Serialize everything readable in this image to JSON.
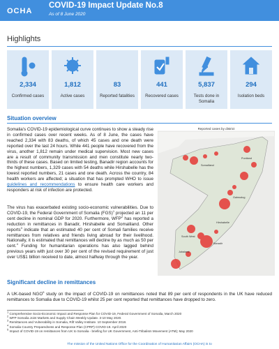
{
  "header": {
    "org": "OCHA",
    "title": "COVID-19 Impact Update No.8",
    "date": "As of 8 June 2020"
  },
  "highlights": {
    "title": "Highlights",
    "items": [
      {
        "value": "2,334",
        "label": "Confirmed cases"
      },
      {
        "value": "1,812",
        "label": "Active cases"
      },
      {
        "value": "83",
        "label": "Reported fatalities"
      },
      {
        "value": "441",
        "label": "Recovered cases"
      },
      {
        "value": "5,837",
        "label": "Tests done in Somalia"
      },
      {
        "value": "294",
        "label": "Isolation beds"
      }
    ]
  },
  "situation_overview": {
    "heading": "Situation overview",
    "paragraphs": [
      [
        "Somalia's COVID-19 epidemiological curve continues to show a steady rise in confirmed cases over recent weeks. As of 8 June, the cases have reached 2,334 with 83 deaths, of which 45 cases and one death were reported over the last 24 hours. While 441 people have recovered from the virus, another 1,812 remain under medical supervision. Most new cases are a result of community transmission and men constitute nearly two-thirds of these cases. Based on limited testing, Banadir region accounts for the highest numbers, 1,329 cases with 54 deaths while Hirshabelle has the lowest reported numbers, 21 cases and one death. Across the country, 84 health workers are affected; a situation that has prompted WHO to issue ",
        {
          "link": "guidelines and recommendations"
        },
        " to ensure health care workers and responders at risk of infection are protected."
      ],
      [
        "The virus has exacerbated existing socio-economic vulnerabilities. Due to COVID-19, the Federal Government of Somalia (FGS)",
        {
          "sup": "1"
        },
        " projected an 11 per cent decline in nominal GDP for 2020. Furthermore, WFP",
        {
          "sup": "2"
        },
        " has reported a reduction in remittances in Banadir, Hirshabelle and Somaliland. Other reports",
        {
          "sup": "3"
        },
        " indicate that an estimated 40 per cent of Somali families receive remittances from relatives and friends living abroad for their livelihood. Nationally, it is estimated that remittances will decline by as much as 50 per cent.",
        {
          "sup": "4"
        },
        " Funding for humanitarian operations has also lagged behind previous years with just over 30 per cent of the revised requirement of just over US$1 billion received to date, almost halfway through the year."
      ]
    ],
    "map": {
      "title": "Reported cases by district",
      "labels": [
        "Somaliland",
        "Puntland",
        "Galmudug",
        "Hirshabelle",
        "South West",
        "Banadir",
        "Jubaland"
      ]
    }
  },
  "remittances": {
    "heading": "Significant decline in remittances",
    "paragraph": [
      "A UK-based NGO",
      {
        "sup": "5"
      },
      " study on the impact of COVID-19 on remittances noted that 89 per cent of respondents in the UK have reduced remittances to Somalia due to COVID-19 whilst 25 per cent reported that remittances have dropped to zero."
    ]
  },
  "footnotes": [
    {
      "number": "1",
      "text": "Comprehensive Socio-Economic Impact and Response Plan for COVID-19, Federal Government of Somalia, March 2020"
    },
    {
      "number": "2",
      "text": "WFP Somalia Joint Markets and Supply Chain Weekly Update. 3-10 May 2020."
    },
    {
      "number": "3",
      "text": "Remittances and Vulnerability in Somalia, Rift Valley Institute. 10 September 2018."
    },
    {
      "number": "4",
      "text": "Somalia Country Preparedness and Response Plan (CPRP) COVID-19. April 2020"
    },
    {
      "number": "5",
      "text": "Impact of COVID-19 on remittances from UK to Somalia - briefing for UK Government, Anti-Tribalism Movement (ATM); May 2020"
    }
  ],
  "footer": "The mission of the United Nations Office for the Coordination of Humanitarian Affairs (OCHA) is to"
}
